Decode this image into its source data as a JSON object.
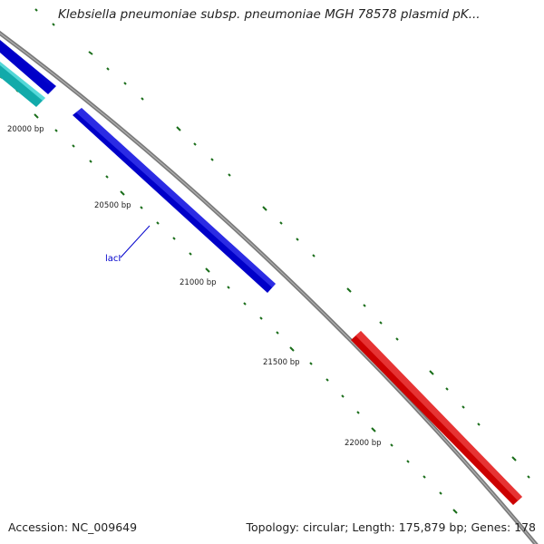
{
  "title": "Klebsiella pneumoniae subsp. pneumoniae MGH 78578 plasmid pK...",
  "footer": {
    "accession": "Accession: NC_009649",
    "summary": "Topology: circular; Length: 175,879 bp; Genes: 178"
  },
  "map": {
    "position_labels": [
      "20000 bp",
      "20500 bp",
      "21000 bp",
      "21500 bp",
      "22000 bp"
    ],
    "gene_labels": [
      {
        "name": "lacI"
      }
    ],
    "features": [
      {
        "name": "cyan-feature",
        "color": "#22cccc"
      },
      {
        "name": "blue-feature-upper",
        "color": "#1a1aee"
      },
      {
        "name": "lacI-feature",
        "color": "#1a1aee"
      },
      {
        "name": "red-feature",
        "color": "#ee1111"
      }
    ],
    "colors": {
      "backbone": "#808080",
      "ticks": "#1a6e1a",
      "gene_label": "#0000cc"
    }
  }
}
